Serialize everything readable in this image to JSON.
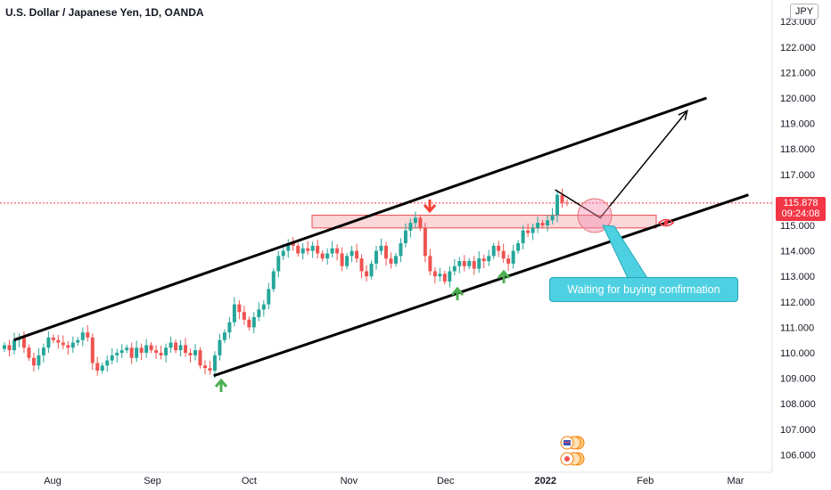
{
  "header": {
    "title": "U.S. Dollar / Japanese Yen, 1D, OANDA"
  },
  "currency_badge": "JPY",
  "price_label": {
    "price": "115.878",
    "countdown": "09:24:08"
  },
  "annotation": {
    "callout_text": "Waiting for buying confirmation"
  },
  "colors": {
    "up": "#26a69a",
    "down": "#ef5350",
    "zone_fill": "#f8c9cc",
    "zone_stroke": "#e74c4c",
    "callout": "#4dd0e1",
    "arrow_green": "#4caf50",
    "arrow_red": "#f44336"
  },
  "icons": [
    "arrow-up-icon",
    "arrow-down-icon",
    "eye-icon",
    "flag-icon"
  ],
  "chart_data": {
    "type": "candlestick",
    "title": "U.S. Dollar / Japanese Yen, 1D, OANDA",
    "y_axis": {
      "range": [
        105.5,
        123.5
      ],
      "ticks": [
        "123.000",
        "122.000",
        "121.000",
        "120.000",
        "119.000",
        "118.000",
        "117.000",
        "116.000",
        "115.000",
        "114.000",
        "113.000",
        "112.000",
        "111.000",
        "110.000",
        "109.000",
        "108.000",
        "107.000",
        "106.000"
      ],
      "tick_values": [
        123,
        122,
        121,
        120,
        119,
        118,
        117,
        116,
        115,
        114,
        113,
        112,
        111,
        110,
        109,
        108,
        107,
        106
      ]
    },
    "x_axis": {
      "ticks": [
        {
          "label": "Aug",
          "date": "2021-08-01"
        },
        {
          "label": "Sep",
          "date": "2021-09-01"
        },
        {
          "label": "Oct",
          "date": "2021-10-01"
        },
        {
          "label": "Nov",
          "date": "2021-11-01"
        },
        {
          "label": "Dec",
          "date": "2021-12-01"
        },
        {
          "label": "2022",
          "date": "2022-01-01",
          "bold": true
        },
        {
          "label": "Feb",
          "date": "2022-02-01"
        },
        {
          "label": "Mar",
          "date": "2022-03-01"
        }
      ]
    },
    "current_price": 115.878,
    "closes": [
      110.3,
      110.1,
      110.5,
      110.6,
      110.2,
      109.8,
      109.5,
      109.9,
      110.2,
      110.6,
      110.5,
      110.4,
      110.3,
      110.2,
      110.4,
      110.5,
      110.8,
      110.6,
      109.6,
      109.3,
      109.5,
      109.7,
      109.9,
      110.0,
      110.1,
      110.2,
      109.8,
      110.2,
      110.0,
      110.3,
      110.1,
      110.0,
      109.9,
      110.2,
      110.4,
      110.1,
      110.3,
      110.0,
      109.9,
      110.1,
      109.5,
      109.4,
      109.3,
      109.9,
      110.5,
      110.8,
      111.2,
      111.9,
      111.6,
      111.3,
      111.0,
      111.4,
      111.7,
      111.9,
      112.5,
      113.2,
      113.8,
      114.0,
      114.3,
      114.2,
      113.9,
      114.1,
      114.0,
      114.2,
      113.9,
      113.7,
      113.9,
      114.1,
      113.9,
      113.4,
      113.8,
      114.0,
      113.7,
      113.2,
      113.0,
      113.5,
      114.0,
      114.2,
      113.7,
      113.5,
      113.8,
      114.3,
      114.8,
      115.1,
      115.3,
      114.9,
      113.8,
      113.2,
      113.0,
      113.1,
      112.8,
      113.2,
      113.4,
      113.6,
      113.4,
      113.6,
      113.3,
      113.7,
      113.6,
      113.8,
      114.2,
      114.0,
      113.7,
      113.5,
      114.0,
      114.3,
      114.8,
      114.7,
      114.9,
      115.1,
      115.0,
      115.2,
      115.4,
      116.2,
      115.9,
      115.878
    ],
    "annotations": {
      "demand_supply_zone": {
        "top": 115.4,
        "bottom": 114.9
      },
      "upper_channel_line": {
        "from": [
          "2021-07-20",
          110.5
        ],
        "to": [
          "2022-02-20",
          120.0
        ]
      },
      "lower_channel_line": {
        "from": [
          "2021-09-20",
          109.1
        ],
        "to": [
          "2022-03-05",
          116.2
        ]
      },
      "projected_path": [
        [
          "2022-01-04",
          116.4
        ],
        [
          "2022-01-18",
          115.3
        ],
        [
          "2022-02-14",
          119.5
        ]
      ]
    }
  }
}
